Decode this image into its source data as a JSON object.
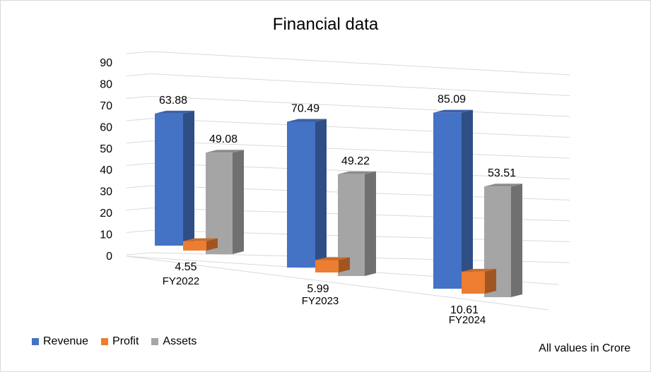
{
  "chart_data": {
    "type": "bar",
    "title": "Financial data",
    "categories": [
      "FY2022",
      "FY2023",
      "FY2024"
    ],
    "series": [
      {
        "name": "Revenue",
        "values": [
          63.88,
          70.49,
          85.09
        ],
        "color": "#4472c4"
      },
      {
        "name": "Profit",
        "values": [
          4.55,
          5.99,
          10.61
        ],
        "color": "#ed7d31"
      },
      {
        "name": "Assets",
        "values": [
          49.08,
          49.22,
          53.51
        ],
        "color": "#a5a5a5"
      }
    ],
    "ylim": [
      0,
      90
    ],
    "yticks": [
      "0",
      "10",
      "20",
      "30",
      "40",
      "50",
      "60",
      "70",
      "80",
      "90"
    ],
    "grid": true,
    "legend_position": "bottom-left",
    "note": "All values in Crore"
  }
}
